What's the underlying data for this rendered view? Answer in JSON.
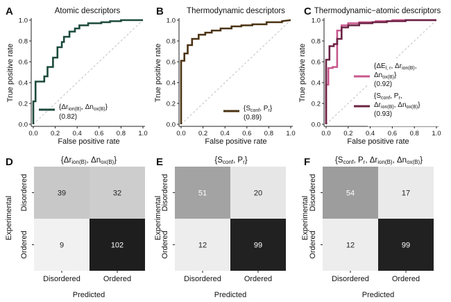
{
  "chart_data": [
    {
      "type": "line",
      "panel": "A",
      "title": "Atomic descriptors",
      "xlabel": "False positive rate",
      "ylabel": "True positive rate",
      "xlim": [
        0,
        1
      ],
      "ylim": [
        0,
        1
      ],
      "xticks": [
        "0.0",
        "0.2",
        "0.4",
        "0.6",
        "0.8",
        "1.0"
      ],
      "yticks": [
        "0.0",
        "0.2",
        "0.4",
        "0.6",
        "0.8",
        "1.0"
      ],
      "diagonal": true,
      "series": [
        {
          "name": "{Δr_ion(B), Δn_ox(B)}",
          "legend_line1": "{Δr",
          "legend_sub1": "ion(B)",
          "legend_mid": ", Δn",
          "legend_sub2": "ox(B)",
          "legend_end": "}",
          "auc": "(0.82)",
          "color": "#1c4a3c",
          "x": [
            0,
            0,
            0.02,
            0.02,
            0.1,
            0.1,
            0.13,
            0.13,
            0.18,
            0.18,
            0.22,
            0.22,
            0.26,
            0.26,
            0.28,
            0.28,
            0.33,
            0.33,
            0.38,
            0.38,
            0.42,
            0.42,
            0.5,
            0.5,
            0.62,
            0.62,
            0.7,
            0.7,
            0.8,
            0.8,
            1.0
          ],
          "y": [
            0,
            0.22,
            0.22,
            0.41,
            0.41,
            0.46,
            0.46,
            0.55,
            0.55,
            0.64,
            0.64,
            0.74,
            0.74,
            0.79,
            0.79,
            0.84,
            0.84,
            0.89,
            0.89,
            0.92,
            0.92,
            0.95,
            0.95,
            0.97,
            0.97,
            0.98,
            0.98,
            0.99,
            0.99,
            1.0,
            1.0
          ]
        }
      ]
    },
    {
      "type": "line",
      "panel": "B",
      "title": "Thermodynamic descriptors",
      "xlabel": "False positive rate",
      "ylabel": "True positive rate",
      "xlim": [
        0,
        1
      ],
      "ylim": [
        0,
        1
      ],
      "xticks": [
        "0.0",
        "0.2",
        "0.4",
        "0.6",
        "0.8",
        "1.0"
      ],
      "yticks": [
        "0.0",
        "0.2",
        "0.4",
        "0.6",
        "0.8",
        "1.0"
      ],
      "diagonal": true,
      "series": [
        {
          "name": "{S_conf, P_r}",
          "legend_line1": "{S",
          "legend_sub1": "conf",
          "legend_mid": ", P",
          "legend_sub2": "r",
          "legend_end": "}",
          "auc": "(0.89)",
          "color": "#4a3212",
          "x": [
            0,
            0,
            0.03,
            0.03,
            0.06,
            0.06,
            0.1,
            0.1,
            0.16,
            0.16,
            0.22,
            0.22,
            0.28,
            0.28,
            0.36,
            0.36,
            0.46,
            0.46,
            0.55,
            0.55,
            0.65,
            0.65,
            0.78,
            0.78,
            0.92,
            0.92,
            1.0
          ],
          "y": [
            0,
            0.61,
            0.61,
            0.68,
            0.68,
            0.76,
            0.76,
            0.82,
            0.82,
            0.86,
            0.86,
            0.88,
            0.88,
            0.9,
            0.9,
            0.92,
            0.92,
            0.94,
            0.94,
            0.95,
            0.95,
            0.96,
            0.96,
            0.98,
            0.98,
            0.99,
            1.0
          ]
        }
      ]
    },
    {
      "type": "line",
      "panel": "C",
      "title": "Thermodynamic−atomic descriptors",
      "xlabel": "False positive rate",
      "ylabel": "True positive rate",
      "xlim": [
        0,
        1
      ],
      "ylim": [
        0,
        1
      ],
      "xticks": [
        "0.0",
        "0.2",
        "0.4",
        "0.6",
        "0.8",
        "1.0"
      ],
      "yticks": [
        "0.0",
        "0.2",
        "0.4",
        "0.6",
        "0.8",
        "1.0"
      ],
      "diagonal": true,
      "series": [
        {
          "name": "{ΔE_l,r, Δr_ion(B), Δn_ox(B)}",
          "legend_lines": [
            "{ΔE",
            "Δn",
            "(0.92)"
          ],
          "sub_lr": "l, r",
          "sub_ion": "ion(B)",
          "sub_ox": "ox(B)",
          "mid_1": ", Δr",
          "end_1": ",",
          "end_2": "}",
          "auc": "(0.92)",
          "color": "#c8578e",
          "x": [
            0,
            0,
            0.02,
            0.02,
            0.06,
            0.06,
            0.1,
            0.1,
            0.14,
            0.14,
            0.2,
            0.2,
            0.3,
            0.3,
            0.45,
            0.45,
            0.6,
            0.6,
            0.78,
            0.78,
            1.0
          ],
          "y": [
            0,
            0.38,
            0.38,
            0.54,
            0.54,
            0.55,
            0.55,
            0.9,
            0.9,
            0.95,
            0.95,
            0.97,
            0.97,
            0.98,
            0.98,
            0.99,
            0.99,
            1.0,
            1.0,
            1.0,
            1.0
          ]
        },
        {
          "name": "{S_conf, P_r, Δr_ion(B), Δn_ox(B)}",
          "sub_conf": "conf",
          "sub_r": "r",
          "sub_ion": "ion(B)",
          "sub_ox": "ox(B)",
          "pre_1": "{S",
          "mid_1": ", P",
          "end_1": ",",
          "pre_2": "Δr",
          "mid_2": ", Δn",
          "end_2": "}",
          "auc": "(0.93)",
          "color": "#6a2343",
          "x": [
            0,
            0,
            0.03,
            0.03,
            0.07,
            0.07,
            0.1,
            0.1,
            0.14,
            0.14,
            0.2,
            0.2,
            0.3,
            0.3,
            0.42,
            0.42,
            0.55,
            0.55,
            0.72,
            0.72,
            1.0
          ],
          "y": [
            0,
            0.62,
            0.62,
            0.75,
            0.75,
            0.77,
            0.77,
            0.82,
            0.82,
            0.93,
            0.93,
            0.95,
            0.95,
            0.97,
            0.97,
            0.98,
            0.98,
            0.99,
            0.99,
            1.0,
            1.0
          ]
        }
      ]
    },
    {
      "type": "heatmap",
      "panel": "D",
      "title_parts": [
        "{Δr",
        "ion(B)",
        ", Δn",
        "ox(B)",
        "}"
      ],
      "xlabel": "Predicted",
      "ylabel": "Experimental",
      "x_categories": [
        "Disordered",
        "Ordered"
      ],
      "y_categories": [
        "Disordered",
        "Ordered"
      ],
      "values": [
        [
          39,
          32
        ],
        [
          9,
          102
        ]
      ],
      "cell_colors": [
        [
          "#c8c8c8",
          "#cdcdcd"
        ],
        [
          "#f1f1f1",
          "#1e1e1e"
        ]
      ]
    },
    {
      "type": "heatmap",
      "panel": "E",
      "title_parts": [
        "{S",
        "conf",
        ", P",
        "r",
        "}"
      ],
      "xlabel": "Predicted",
      "ylabel": "Experimental",
      "x_categories": [
        "Disordered",
        "Ordered"
      ],
      "y_categories": [
        "Disordered",
        "Ordered"
      ],
      "values": [
        [
          51,
          20
        ],
        [
          12,
          99
        ]
      ],
      "cell_colors": [
        [
          "#a3a3a3",
          "#e6e6e6"
        ],
        [
          "#ededed",
          "#212121"
        ]
      ]
    },
    {
      "type": "heatmap",
      "panel": "F",
      "title_parts": [
        "{S",
        "conf",
        ", P",
        "r",
        ", Δr",
        "ion(B)",
        ", Δn",
        "ox(B)",
        "}"
      ],
      "xlabel": "Predicted",
      "ylabel": "Experimental",
      "x_categories": [
        "Disordered",
        "Ordered"
      ],
      "y_categories": [
        "Disordered",
        "Ordered"
      ],
      "values": [
        [
          54,
          17
        ],
        [
          12,
          99
        ]
      ],
      "cell_colors": [
        [
          "#9d9d9d",
          "#eaeaea"
        ],
        [
          "#ededed",
          "#212121"
        ]
      ]
    }
  ]
}
